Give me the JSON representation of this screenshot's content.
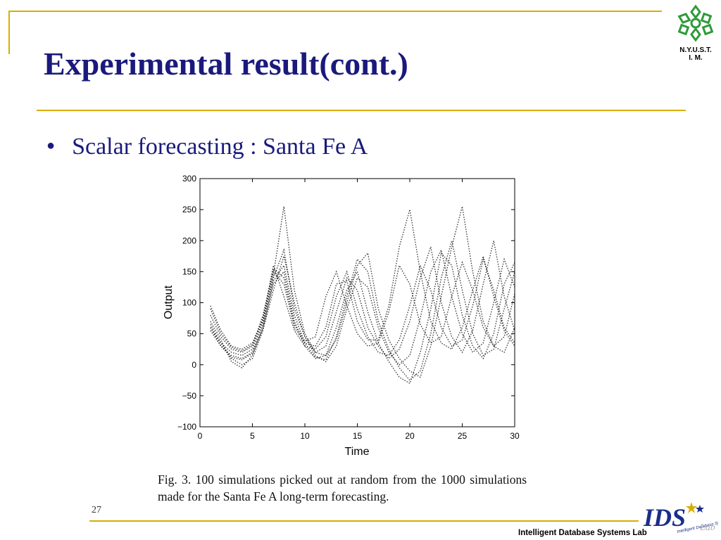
{
  "slide": {
    "title": "Experimental result(cont.)",
    "bullet": "Scalar forecasting : Santa Fe A",
    "page_number": "27",
    "footer": "Intelligent Database Systems Lab",
    "logo_top_text_1": "N.Y.U.S.T.",
    "logo_top_text_2": "I. M.",
    "ids_logo_text": "IDS",
    "ids_logo_subtext": "Intelligent Database Systems",
    "ids_logo_lab": "Lab"
  },
  "figure": {
    "caption": "Fig. 3.  100 simulations picked out at random from the 1000 simulations made for the Santa Fe A long-term forecasting."
  },
  "colors": {
    "accent_gold": "#d9ad00",
    "title_navy": "#1a1a7c",
    "logo_green": "#2e9a3a",
    "ids_blue": "#1a2d8c"
  },
  "chart_data": {
    "type": "line",
    "title": "",
    "xlabel": "Time",
    "ylabel": "Output",
    "xlim": [
      0,
      30
    ],
    "ylim": [
      -100,
      300
    ],
    "x_ticks": [
      0,
      5,
      10,
      15,
      20,
      25,
      30
    ],
    "y_ticks": [
      -100,
      -50,
      0,
      50,
      100,
      150,
      200,
      250,
      300
    ],
    "grid": false,
    "series_style": "black dotted lines",
    "series": [
      {
        "x": [
          1,
          2,
          3,
          4,
          5,
          6,
          7,
          8,
          9,
          10,
          11,
          12,
          13,
          14,
          15,
          16,
          17,
          18,
          19,
          20,
          21,
          22,
          23,
          24,
          25,
          26,
          27,
          28,
          29,
          30
        ],
        "values": [
          95,
          55,
          30,
          25,
          35,
          75,
          160,
          110,
          55,
          30,
          25,
          45,
          110,
          150,
          90,
          45,
          20,
          15,
          40,
          95,
          160,
          120,
          60,
          30,
          40,
          95,
          170,
          120,
          60,
          35
        ]
      },
      {
        "x": [
          1,
          2,
          3,
          4,
          5,
          6,
          7,
          8,
          9,
          10,
          11,
          12,
          13,
          14,
          15,
          16,
          17,
          18,
          19,
          20,
          21,
          22,
          23,
          24,
          25,
          26,
          27,
          28,
          29,
          30
        ],
        "values": [
          60,
          35,
          20,
          15,
          25,
          70,
          140,
          185,
          90,
          45,
          20,
          30,
          85,
          140,
          120,
          60,
          30,
          10,
          25,
          70,
          140,
          190,
          100,
          45,
          20,
          55,
          130,
          200,
          110,
          55
        ]
      },
      {
        "x": [
          1,
          2,
          3,
          4,
          5,
          6,
          7,
          8,
          9,
          10,
          11,
          12,
          13,
          14,
          15,
          16,
          17,
          18,
          19,
          20,
          21,
          22,
          23,
          24,
          25,
          26,
          27,
          28,
          29,
          30
        ],
        "values": [
          70,
          40,
          5,
          -5,
          15,
          60,
          130,
          150,
          70,
          30,
          10,
          15,
          60,
          120,
          150,
          85,
          35,
          5,
          -20,
          -30,
          20,
          90,
          180,
          160,
          80,
          30,
          10,
          50,
          130,
          165
        ]
      },
      {
        "x": [
          1,
          2,
          3,
          4,
          5,
          6,
          7,
          8,
          9,
          10,
          11,
          12,
          13,
          14,
          15,
          16,
          17,
          18,
          19,
          20,
          21,
          22,
          23,
          24,
          25,
          26,
          27,
          28,
          29,
          30
        ],
        "values": [
          80,
          45,
          25,
          20,
          30,
          80,
          150,
          130,
          60,
          35,
          30,
          60,
          130,
          135,
          70,
          40,
          40,
          95,
          190,
          250,
          150,
          70,
          35,
          25,
          60,
          120,
          175,
          110,
          55,
          30
        ]
      },
      {
        "x": [
          1,
          2,
          3,
          4,
          5,
          6,
          7,
          8,
          9,
          10,
          11,
          12,
          13,
          14,
          15,
          16,
          17,
          18,
          19,
          20,
          21,
          22,
          23,
          24,
          25,
          26,
          27,
          28,
          29,
          30
        ],
        "values": [
          55,
          30,
          15,
          10,
          20,
          65,
          145,
          255,
          120,
          50,
          20,
          15,
          40,
          100,
          160,
          180,
          90,
          40,
          10,
          -10,
          -20,
          30,
          110,
          190,
          255,
          150,
          70,
          30,
          20,
          60
        ]
      },
      {
        "x": [
          1,
          2,
          3,
          4,
          5,
          6,
          7,
          8,
          9,
          10,
          11,
          12,
          13,
          14,
          15,
          16,
          17,
          18,
          19,
          20,
          21,
          22,
          23,
          24,
          25,
          26,
          27,
          28,
          29,
          30
        ],
        "values": [
          65,
          35,
          10,
          0,
          10,
          55,
          120,
          175,
          100,
          45,
          15,
          5,
          30,
          90,
          140,
          125,
          60,
          20,
          0,
          15,
          75,
          150,
          185,
          110,
          50,
          20,
          35,
          100,
          170,
          125
        ]
      },
      {
        "x": [
          1,
          2,
          3,
          4,
          5,
          6,
          7,
          8,
          9,
          10,
          11,
          12,
          13,
          14,
          15,
          16,
          17,
          18,
          19,
          20,
          21,
          22,
          23,
          24,
          25,
          26,
          27,
          28,
          29,
          30
        ],
        "values": [
          90,
          50,
          28,
          22,
          32,
          72,
          155,
          140,
          65,
          38,
          45,
          110,
          150,
          95,
          50,
          30,
          35,
          85,
          160,
          130,
          65,
          35,
          45,
          110,
          165,
          120,
          60,
          30,
          45,
          115
        ]
      },
      {
        "x": [
          1,
          2,
          3,
          4,
          5,
          6,
          7,
          8,
          9,
          10,
          11,
          12,
          13,
          14,
          15,
          16,
          17,
          18,
          19,
          20,
          21,
          22,
          23,
          24,
          25,
          26,
          27,
          28,
          29,
          30
        ],
        "values": [
          60,
          30,
          12,
          8,
          18,
          58,
          135,
          160,
          80,
          35,
          12,
          8,
          45,
          110,
          170,
          150,
          70,
          25,
          -5,
          -25,
          -10,
          50,
          140,
          200,
          120,
          50,
          15,
          25,
          90,
          150
        ]
      }
    ]
  }
}
